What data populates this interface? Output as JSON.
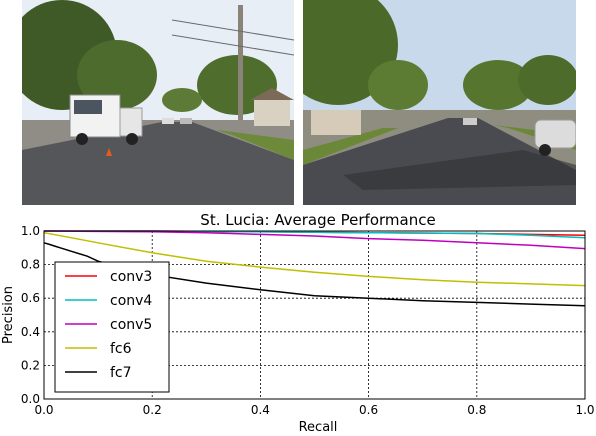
{
  "photos": [
    {
      "name": "street-photo-left",
      "sky": "#e8eef5",
      "road": "#55565a",
      "foliage": "#3f5a26"
    },
    {
      "name": "street-photo-right",
      "sky": "#c9d9ec",
      "road": "#4a4b50",
      "foliage": "#4b6a2a"
    }
  ],
  "chart_data": {
    "type": "line",
    "title": "St. Lucia: Average Performance",
    "xlabel": "Recall",
    "ylabel": "Precision",
    "xlim": [
      0.0,
      1.0
    ],
    "ylim": [
      0.0,
      1.0
    ],
    "xticks": [
      "0.0",
      "0.2",
      "0.4",
      "0.6",
      "0.8",
      "1.0"
    ],
    "yticks": [
      "0.0",
      "0.2",
      "0.4",
      "0.6",
      "0.8",
      "1.0"
    ],
    "grid": true,
    "legend_position": "middle-left",
    "series": [
      {
        "name": "conv3",
        "color": "#ff0000",
        "x": [
          0.0,
          0.2,
          0.4,
          0.6,
          0.8,
          1.0
        ],
        "y": [
          1.0,
          1.0,
          0.995,
          0.99,
          0.985,
          0.975
        ]
      },
      {
        "name": "conv4",
        "color": "#00bfbf",
        "x": [
          0.0,
          0.2,
          0.4,
          0.6,
          0.8,
          0.9,
          1.0
        ],
        "y": [
          1.0,
          1.0,
          0.995,
          0.99,
          0.985,
          0.975,
          0.96
        ]
      },
      {
        "name": "conv5",
        "color": "#bf00bf",
        "x": [
          0.0,
          0.2,
          0.3,
          0.4,
          0.5,
          0.6,
          0.7,
          0.8,
          0.9,
          1.0
        ],
        "y": [
          1.0,
          0.995,
          0.99,
          0.98,
          0.97,
          0.955,
          0.945,
          0.93,
          0.915,
          0.895
        ]
      },
      {
        "name": "fc6",
        "color": "#bfbf00",
        "x": [
          0.0,
          0.05,
          0.1,
          0.2,
          0.3,
          0.4,
          0.5,
          0.6,
          0.7,
          0.8,
          0.9,
          1.0
        ],
        "y": [
          0.99,
          0.96,
          0.93,
          0.87,
          0.82,
          0.785,
          0.755,
          0.73,
          0.71,
          0.695,
          0.685,
          0.675
        ]
      },
      {
        "name": "fc7",
        "color": "#000000",
        "x": [
          0.0,
          0.01,
          0.02,
          0.03,
          0.05,
          0.08,
          0.1,
          0.15,
          0.2,
          0.3,
          0.4,
          0.5,
          0.6,
          0.7,
          0.8,
          0.9,
          1.0
        ],
        "y": [
          0.93,
          0.92,
          0.91,
          0.9,
          0.88,
          0.85,
          0.82,
          0.78,
          0.74,
          0.69,
          0.65,
          0.615,
          0.6,
          0.585,
          0.575,
          0.565,
          0.555
        ]
      }
    ]
  }
}
